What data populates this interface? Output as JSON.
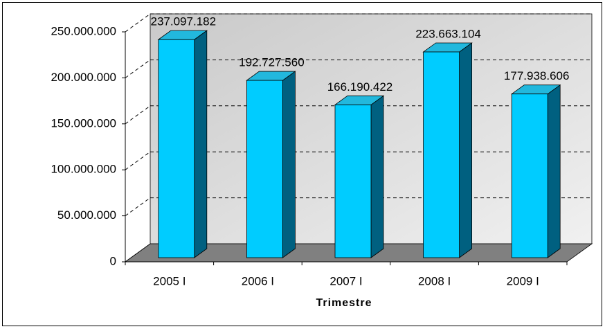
{
  "chart_data": {
    "type": "bar3d",
    "x_label": "Trimestre",
    "categories": [
      "2005 I",
      "2006 I",
      "2007 I",
      "2008 I",
      "2009 I"
    ],
    "values": [
      237097182,
      192727560,
      166190422,
      223663104,
      177938606
    ],
    "value_labels": [
      "237.097.182",
      "192.727.560",
      "166.190.422",
      "223.663.104",
      "177.938.606"
    ],
    "color": "#00ccff",
    "ylim": [
      0,
      250000000
    ],
    "yticks": [
      0,
      {
        "value": 50000000,
        "label": "50.000.000"
      },
      {
        "value": 100000000,
        "label": "100.000.000"
      },
      {
        "value": 150000000,
        "label": "150.000.000"
      },
      {
        "value": 200000000,
        "label": "200.000.000"
      },
      {
        "value": 250000000,
        "label": "250.000.000"
      }
    ],
    "grid": true
  }
}
